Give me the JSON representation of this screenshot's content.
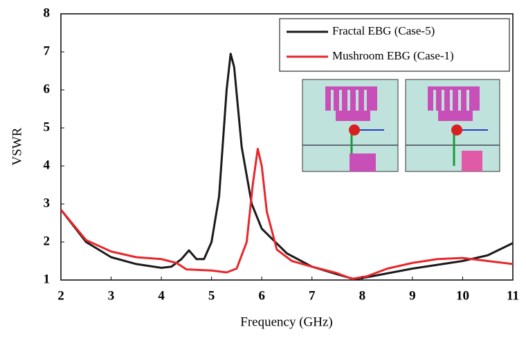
{
  "chart_data": {
    "type": "line",
    "xlabel": "Frequency (GHz)",
    "ylabel": "VSWR",
    "xlim": [
      2,
      11
    ],
    "ylim": [
      1,
      8
    ],
    "xticks": [
      2,
      3,
      4,
      5,
      6,
      7,
      8,
      9,
      10,
      11
    ],
    "yticks": [
      1,
      2,
      3,
      4,
      5,
      6,
      7,
      8
    ],
    "series": [
      {
        "name": "Fractal EBG (Case-5)",
        "color": "#1a1a1a",
        "x": [
          2,
          2.5,
          3,
          3.5,
          4,
          4.2,
          4.4,
          4.55,
          4.7,
          4.85,
          5.0,
          5.15,
          5.3,
          5.38,
          5.45,
          5.6,
          5.8,
          6.0,
          6.5,
          7,
          7.5,
          7.85,
          8.2,
          9,
          9.5,
          10,
          10.5,
          11
        ],
        "values": [
          2.85,
          2.0,
          1.6,
          1.42,
          1.32,
          1.35,
          1.55,
          1.78,
          1.55,
          1.55,
          2.0,
          3.2,
          6.0,
          6.95,
          6.6,
          4.5,
          3.0,
          2.35,
          1.7,
          1.35,
          1.15,
          1.02,
          1.1,
          1.3,
          1.4,
          1.5,
          1.65,
          1.97
        ]
      },
      {
        "name": "Mushroom EBG (Case-1)",
        "color": "#e8262b",
        "x": [
          2,
          2.5,
          3,
          3.5,
          4,
          4.3,
          4.5,
          5.0,
          5.3,
          5.5,
          5.7,
          5.82,
          5.92,
          6.0,
          6.1,
          6.3,
          6.6,
          7,
          7.5,
          7.8,
          8.1,
          8.5,
          9,
          9.5,
          10,
          10.5,
          11
        ],
        "values": [
          2.85,
          2.05,
          1.75,
          1.6,
          1.55,
          1.45,
          1.28,
          1.25,
          1.2,
          1.3,
          2.0,
          3.5,
          4.45,
          4.0,
          2.8,
          1.8,
          1.5,
          1.35,
          1.18,
          1.03,
          1.1,
          1.3,
          1.45,
          1.55,
          1.58,
          1.5,
          1.42
        ]
      }
    ]
  }
}
